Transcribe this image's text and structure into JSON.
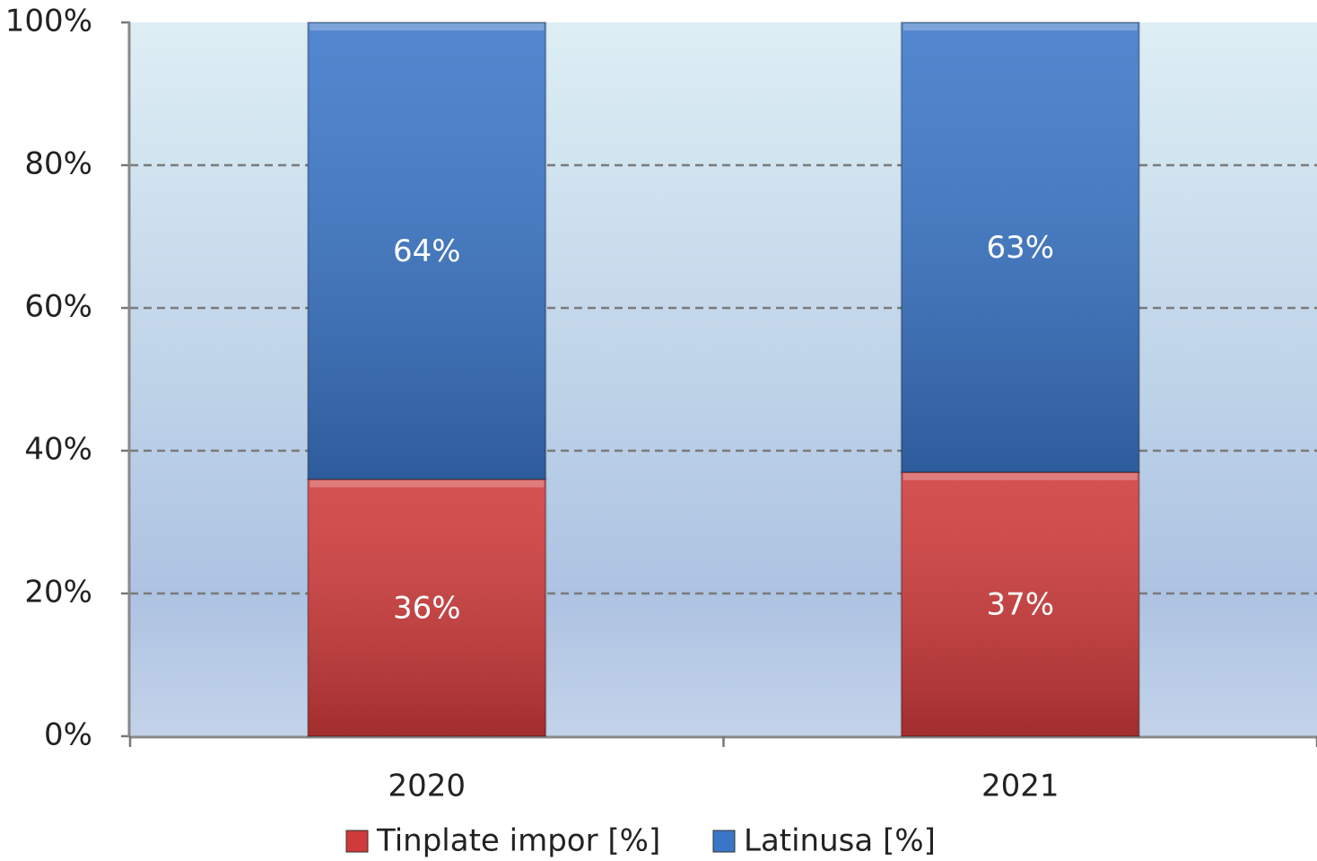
{
  "chart_data": {
    "type": "stacked_bar",
    "categories": [
      "2020",
      "2021"
    ],
    "series": [
      {
        "name": "Tinplate impor [%]",
        "color": "#d03a3a",
        "values": [
          36,
          37
        ],
        "value_labels": [
          "36%",
          "37%"
        ]
      },
      {
        "name": "Latinusa [%]",
        "color": "#3a76c8",
        "values": [
          64,
          63
        ],
        "value_labels": [
          "64%",
          "63%"
        ]
      }
    ],
    "ylim": [
      0,
      100
    ],
    "yticks": [
      {
        "value": 0,
        "label": "0%"
      },
      {
        "value": 20,
        "label": "20%"
      },
      {
        "value": 40,
        "label": "40%"
      },
      {
        "value": 60,
        "label": "60%"
      },
      {
        "value": 80,
        "label": "80%"
      },
      {
        "value": 100,
        "label": "100%"
      }
    ],
    "grid": true,
    "legend": "bottom"
  }
}
